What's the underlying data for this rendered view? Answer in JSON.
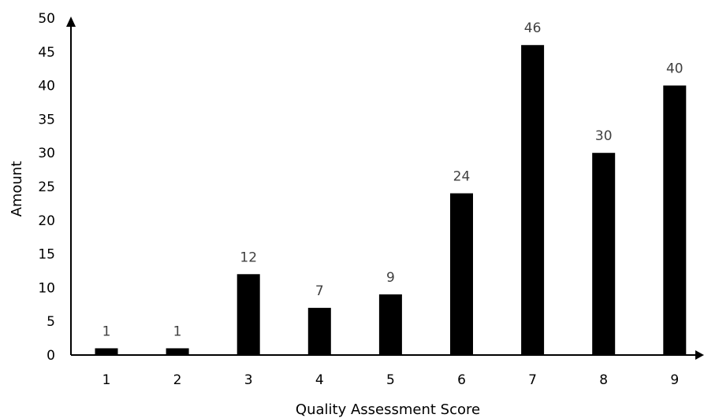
{
  "chart_data": {
    "type": "bar",
    "title": "",
    "xlabel": "Quality Assessment Score",
    "ylabel": "Amount",
    "categories": [
      "1",
      "2",
      "3",
      "4",
      "5",
      "6",
      "7",
      "8",
      "9"
    ],
    "values": [
      1,
      1,
      12,
      7,
      9,
      24,
      46,
      30,
      40
    ],
    "ylim": [
      0,
      50
    ],
    "yticks": [
      "0",
      "5",
      "10",
      "15",
      "20",
      "25",
      "30",
      "35",
      "40",
      "45",
      "50"
    ],
    "grid": false,
    "legend": "none",
    "bar_color": "#000000",
    "label_color": "#404040"
  }
}
